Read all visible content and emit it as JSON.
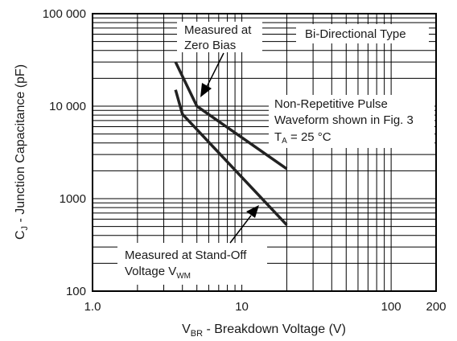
{
  "chart_data": {
    "type": "line",
    "x_scale": "log",
    "y_scale": "log",
    "xlim": [
      1,
      200
    ],
    "ylim": [
      100,
      100000
    ],
    "grid": true,
    "x_ticks": [
      {
        "value": 1,
        "label": "1.0"
      },
      {
        "value": 10,
        "label": "10"
      },
      {
        "value": 100,
        "label": "100"
      },
      {
        "value": 200,
        "label": "200"
      }
    ],
    "y_ticks": [
      {
        "value": 100,
        "label": "100"
      },
      {
        "value": 1000,
        "label": "1000"
      },
      {
        "value": 10000,
        "label": "10 000"
      },
      {
        "value": 100000,
        "label": "100 000"
      }
    ],
    "xlabel": {
      "main": "V",
      "sub": "BR",
      "rest": " - Breakdown Voltage (V)"
    },
    "ylabel": {
      "main": "C",
      "sub": "J",
      "rest": " - Junction Capacitance (pF)"
    },
    "series": [
      {
        "x": [
          3.6,
          5.0,
          20
        ],
        "y": [
          30000,
          10000,
          2100
        ]
      },
      {
        "x": [
          3.6,
          4.0,
          20
        ],
        "y": [
          15000,
          8200,
          520
        ]
      }
    ],
    "annotations": {
      "zero_bias": {
        "line1": "Measured at",
        "line2": "Zero Bias"
      },
      "type_label": "Bi-Directional Type",
      "pulse": {
        "line1": "Non-Repetitive Pulse",
        "line2": "Waveform shown in Fig. 3",
        "ta_main": "T",
        "ta_sub": "A",
        "ta_rest": " = 25 °C"
      },
      "standoff": {
        "line1": "Measured at Stand-Off",
        "line2_main": "Voltage V",
        "line2_sub": "WM"
      }
    }
  }
}
